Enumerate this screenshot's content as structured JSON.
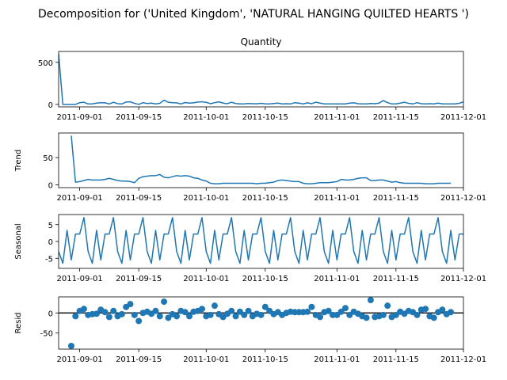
{
  "figure": {
    "suptitle": "Decomposition for ('United Kingdom', 'NATURAL HANGING QUILTED HEARTS ')"
  },
  "chart_data": [
    {
      "type": "line",
      "title": "Quantity",
      "xlabel": "",
      "ylabel": "",
      "xlim": [
        "2011-08-27",
        "2011-12-01"
      ],
      "ylim": [
        -30,
        630
      ],
      "yticks": [
        0,
        500
      ],
      "xticks": [
        "2011-09-01",
        "2011-09-15",
        "2011-10-01",
        "2011-10-15",
        "2011-11-01",
        "2011-11-15",
        "2011-12-01"
      ],
      "grid": false,
      "series": [
        {
          "color": "#1f77b4",
          "x": [
            "2011-08-27",
            "2011-08-28",
            "2011-08-29",
            "2011-08-30",
            "2011-08-31",
            "2011-09-01",
            "2011-09-02",
            "2011-09-03",
            "2011-09-04",
            "2011-09-05",
            "2011-09-06",
            "2011-09-07",
            "2011-09-08",
            "2011-09-09",
            "2011-09-10",
            "2011-09-11",
            "2011-09-12",
            "2011-09-13",
            "2011-09-14",
            "2011-09-15",
            "2011-09-16",
            "2011-09-17",
            "2011-09-18",
            "2011-09-19",
            "2011-09-20",
            "2011-09-21",
            "2011-09-22",
            "2011-09-23",
            "2011-09-24",
            "2011-09-25",
            "2011-09-26",
            "2011-09-27",
            "2011-09-28",
            "2011-09-29",
            "2011-09-30",
            "2011-10-01",
            "2011-10-02",
            "2011-10-03",
            "2011-10-04",
            "2011-10-05",
            "2011-10-06",
            "2011-10-07",
            "2011-10-08",
            "2011-10-09",
            "2011-10-10",
            "2011-10-11",
            "2011-10-12",
            "2011-10-13",
            "2011-10-14",
            "2011-10-15",
            "2011-10-16",
            "2011-10-17",
            "2011-10-18",
            "2011-10-19",
            "2011-10-20",
            "2011-10-21",
            "2011-10-22",
            "2011-10-23",
            "2011-10-24",
            "2011-10-25",
            "2011-10-26",
            "2011-10-27",
            "2011-10-28",
            "2011-10-29",
            "2011-10-30",
            "2011-10-31",
            "2011-11-01",
            "2011-11-02",
            "2011-11-03",
            "2011-11-04",
            "2011-11-05",
            "2011-11-06",
            "2011-11-07",
            "2011-11-08",
            "2011-11-09",
            "2011-11-10",
            "2011-11-11",
            "2011-11-12",
            "2011-11-13",
            "2011-11-14",
            "2011-11-15",
            "2011-11-16",
            "2011-11-17",
            "2011-11-18",
            "2011-11-19",
            "2011-11-20",
            "2011-11-21",
            "2011-11-22",
            "2011-11-23",
            "2011-11-24",
            "2011-11-25",
            "2011-11-26",
            "2011-11-27",
            "2011-11-28",
            "2011-11-29",
            "2011-11-30",
            "2011-12-01"
          ],
          "values": [
            600,
            0,
            0,
            0,
            0,
            20,
            25,
            5,
            5,
            15,
            20,
            18,
            5,
            25,
            8,
            5,
            28,
            30,
            12,
            0,
            20,
            10,
            15,
            5,
            12,
            50,
            25,
            20,
            18,
            5,
            22,
            15,
            18,
            28,
            30,
            24,
            8,
            20,
            30,
            15,
            8,
            25,
            10,
            5,
            5,
            10,
            8,
            6,
            12,
            5,
            5,
            10,
            15,
            5,
            8,
            5,
            20,
            15,
            5,
            18,
            8,
            25,
            15,
            5,
            5,
            5,
            5,
            5,
            5,
            15,
            18,
            8,
            5,
            5,
            10,
            8,
            15,
            45,
            20,
            5,
            5,
            15,
            25,
            12,
            5,
            20,
            8,
            5,
            8,
            5,
            15,
            5,
            5,
            5,
            5,
            12,
            30
          ]
        }
      ]
    },
    {
      "type": "line",
      "title": "",
      "xlabel": "",
      "ylabel": "Trend",
      "xlim": [
        "2011-08-27",
        "2011-12-01"
      ],
      "ylim": [
        -5,
        95
      ],
      "yticks": [
        0,
        50
      ],
      "xticks": [
        "2011-09-01",
        "2011-09-15",
        "2011-10-01",
        "2011-10-15",
        "2011-11-01",
        "2011-11-15",
        "2011-12-01"
      ],
      "grid": false,
      "series": [
        {
          "color": "#1f77b4",
          "x": [
            "2011-08-30",
            "2011-08-31",
            "2011-09-01",
            "2011-09-02",
            "2011-09-03",
            "2011-09-04",
            "2011-09-05",
            "2011-09-06",
            "2011-09-07",
            "2011-09-08",
            "2011-09-09",
            "2011-09-10",
            "2011-09-11",
            "2011-09-12",
            "2011-09-13",
            "2011-09-14",
            "2011-09-15",
            "2011-09-16",
            "2011-09-17",
            "2011-09-18",
            "2011-09-19",
            "2011-09-20",
            "2011-09-21",
            "2011-09-22",
            "2011-09-23",
            "2011-09-24",
            "2011-09-25",
            "2011-09-26",
            "2011-09-27",
            "2011-09-28",
            "2011-09-29",
            "2011-09-30",
            "2011-10-01",
            "2011-10-02",
            "2011-10-03",
            "2011-10-04",
            "2011-10-05",
            "2011-10-06",
            "2011-10-07",
            "2011-10-08",
            "2011-10-09",
            "2011-10-10",
            "2011-10-11",
            "2011-10-12",
            "2011-10-13",
            "2011-10-14",
            "2011-10-15",
            "2011-10-16",
            "2011-10-17",
            "2011-10-18",
            "2011-10-19",
            "2011-10-20",
            "2011-10-21",
            "2011-10-22",
            "2011-10-23",
            "2011-10-24",
            "2011-10-25",
            "2011-10-26",
            "2011-10-27",
            "2011-10-28",
            "2011-10-29",
            "2011-10-30",
            "2011-10-31",
            "2011-11-01",
            "2011-11-02",
            "2011-11-03",
            "2011-11-04",
            "2011-11-05",
            "2011-11-06",
            "2011-11-07",
            "2011-11-08",
            "2011-11-09",
            "2011-11-10",
            "2011-11-11",
            "2011-11-12",
            "2011-11-13",
            "2011-11-14",
            "2011-11-15",
            "2011-11-16",
            "2011-11-17",
            "2011-11-18",
            "2011-11-19",
            "2011-11-20",
            "2011-11-21",
            "2011-11-22",
            "2011-11-23",
            "2011-11-24",
            "2011-11-25",
            "2011-11-26",
            "2011-11-27",
            "2011-11-28"
          ],
          "values": [
            90,
            5,
            6,
            8,
            10,
            9,
            9,
            9,
            10,
            12,
            10,
            8,
            7,
            7,
            6,
            4,
            12,
            15,
            16,
            17,
            17,
            19,
            14,
            13,
            15,
            17,
            16,
            17,
            16,
            13,
            12,
            9,
            7,
            3,
            2,
            2,
            3,
            3,
            3,
            3,
            3,
            3,
            3,
            3,
            2,
            3,
            3,
            4,
            5,
            8,
            9,
            8,
            7,
            6,
            6,
            3,
            2,
            2,
            3,
            4,
            4,
            4,
            5,
            6,
            10,
            9,
            9,
            10,
            12,
            13,
            13,
            8,
            8,
            9,
            9,
            7,
            5,
            6,
            4,
            3,
            3,
            3,
            3,
            3,
            2,
            2,
            2,
            3,
            3,
            3,
            3
          ]
        }
      ]
    },
    {
      "type": "line",
      "title": "",
      "xlabel": "",
      "ylabel": "Seasonal",
      "xlim": [
        "2011-08-27",
        "2011-12-01"
      ],
      "ylim": [
        -8,
        8
      ],
      "yticks": [
        -5,
        0,
        5
      ],
      "xticks": [
        "2011-09-01",
        "2011-09-15",
        "2011-10-01",
        "2011-10-15",
        "2011-11-01",
        "2011-11-15",
        "2011-12-01"
      ],
      "grid": false,
      "period_pattern": [
        -3,
        -6.5,
        3.3,
        -5.5,
        2.2,
        2.2,
        7.1
      ],
      "series": [
        {
          "color": "#1f77b4",
          "x_start": "2011-08-27",
          "x_end": "2011-12-01"
        }
      ]
    },
    {
      "type": "scatter",
      "title": "",
      "xlabel": "",
      "ylabel": "Resid",
      "xlim": [
        "2011-08-27",
        "2011-12-01"
      ],
      "ylim": [
        -90,
        40
      ],
      "yticks": [
        -50,
        0
      ],
      "xticks": [
        "2011-09-01",
        "2011-09-15",
        "2011-10-01",
        "2011-10-15",
        "2011-11-01",
        "2011-11-15",
        "2011-12-01"
      ],
      "grid": false,
      "baseline": 0,
      "series": [
        {
          "color": "#1f77b4",
          "x": [
            "2011-08-30",
            "2011-08-31",
            "2011-09-01",
            "2011-09-02",
            "2011-09-03",
            "2011-09-04",
            "2011-09-05",
            "2011-09-06",
            "2011-09-07",
            "2011-09-08",
            "2011-09-09",
            "2011-09-10",
            "2011-09-11",
            "2011-09-12",
            "2011-09-13",
            "2011-09-14",
            "2011-09-15",
            "2011-09-16",
            "2011-09-17",
            "2011-09-18",
            "2011-09-19",
            "2011-09-20",
            "2011-09-21",
            "2011-09-22",
            "2011-09-23",
            "2011-09-24",
            "2011-09-25",
            "2011-09-26",
            "2011-09-27",
            "2011-09-28",
            "2011-09-29",
            "2011-09-30",
            "2011-10-01",
            "2011-10-02",
            "2011-10-03",
            "2011-10-04",
            "2011-10-05",
            "2011-10-06",
            "2011-10-07",
            "2011-10-08",
            "2011-10-09",
            "2011-10-10",
            "2011-10-11",
            "2011-10-12",
            "2011-10-13",
            "2011-10-14",
            "2011-10-15",
            "2011-10-16",
            "2011-10-17",
            "2011-10-18",
            "2011-10-19",
            "2011-10-20",
            "2011-10-21",
            "2011-10-22",
            "2011-10-23",
            "2011-10-24",
            "2011-10-25",
            "2011-10-26",
            "2011-10-27",
            "2011-10-28",
            "2011-10-29",
            "2011-10-30",
            "2011-10-31",
            "2011-11-01",
            "2011-11-02",
            "2011-11-03",
            "2011-11-04",
            "2011-11-05",
            "2011-11-06",
            "2011-11-07",
            "2011-11-08",
            "2011-11-09",
            "2011-11-10",
            "2011-11-11",
            "2011-11-12",
            "2011-11-13",
            "2011-11-14",
            "2011-11-15",
            "2011-11-16",
            "2011-11-17",
            "2011-11-18",
            "2011-11-19",
            "2011-11-20",
            "2011-11-21",
            "2011-11-22",
            "2011-11-23",
            "2011-11-24",
            "2011-11-25",
            "2011-11-26",
            "2011-11-27",
            "2011-11-28"
          ],
          "values": [
            -82,
            -8,
            5,
            10,
            -5,
            -3,
            -2,
            8,
            2,
            -10,
            5,
            -8,
            -3,
            15,
            22,
            -5,
            -20,
            0,
            3,
            -2,
            5,
            -8,
            28,
            -12,
            -3,
            -8,
            5,
            2,
            -8,
            3,
            5,
            10,
            -8,
            -5,
            18,
            -3,
            -10,
            -2,
            5,
            -8,
            3,
            -5,
            5,
            -8,
            -2,
            -5,
            15,
            5,
            -3,
            2,
            -5,
            0,
            3,
            2,
            2,
            2,
            3,
            15,
            -5,
            -10,
            2,
            5,
            -5,
            -5,
            3,
            12,
            -5,
            3,
            -2,
            -8,
            -12,
            32,
            -10,
            -8,
            -5,
            18,
            -10,
            -5,
            3,
            -2,
            5,
            2,
            -5,
            8,
            10,
            -8,
            -12,
            2,
            8,
            -3,
            2
          ]
        }
      ]
    }
  ]
}
